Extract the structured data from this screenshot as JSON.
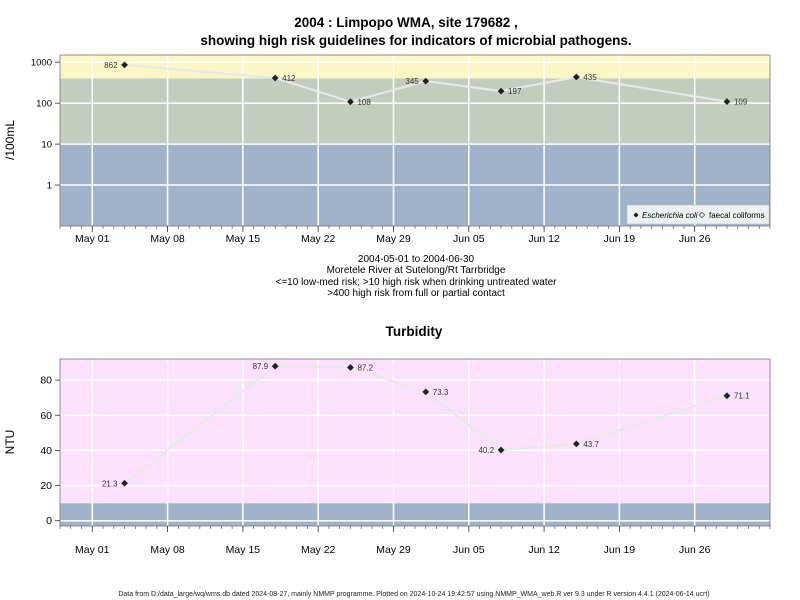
{
  "title_line1": "2004 : Limpopo WMA, site 179682 ,",
  "title_line2": "showing high risk guidelines for indicators of microbial pathogens.",
  "subtitle": {
    "line1": "2004-05-01 to 2004-06-30",
    "line2": "Moretele River at Sutelong/Rt Tarrbridge",
    "line3": "<=10 low-med risk; >10 high risk when drinking untreated water",
    "line4": ">400 high risk from full or partial contact"
  },
  "footer": "Data from D:/data_large/wq/wms.db dated 2024-08-27, mainly NMMP programme. Plotted on 2024-10-24 19:42:57 using NMMP_WMA_web.R ver 9.3 under R version 4.4.1 (2024-06-14 ucrt)",
  "colors": {
    "yellow_band": "#fbf6c6",
    "mid_band": "#c2cdbf",
    "blue_band": "#a1b3cb",
    "pink_band": "#fce0fc",
    "turb_blue_band": "#a1b3cb",
    "line": "#e8e8e8",
    "marker": "#222222"
  },
  "chart_data": [
    {
      "type": "line",
      "title": "",
      "ylabel": "/100mL",
      "yscale": "log",
      "ylim": [
        0.1,
        1500
      ],
      "yticks": [
        1,
        10,
        100,
        1000
      ],
      "ytick_labels": [
        "1",
        "10",
        "100",
        "1000"
      ],
      "xlim": [
        "2004-04-28",
        "2004-07-03"
      ],
      "xticks": [
        "2004-05-01",
        "2004-05-08",
        "2004-05-15",
        "2004-05-22",
        "2004-05-29",
        "2004-06-05",
        "2004-06-12",
        "2004-06-19",
        "2004-06-26"
      ],
      "xtick_labels": [
        "May 01",
        "May 08",
        "May 15",
        "May 22",
        "May 29",
        "Jun 05",
        "Jun 12",
        "Jun 19",
        "Jun 26"
      ],
      "bands": [
        {
          "from": 0.1,
          "to": 10,
          "color": "#a1b3cb"
        },
        {
          "from": 10,
          "to": 400,
          "color": "#c2cdbf"
        },
        {
          "from": 400,
          "to": 1500,
          "color": "#fbf6c6"
        }
      ],
      "series": [
        {
          "name": "Escherichia coli",
          "x": [
            "2004-05-04",
            "2004-05-18",
            "2004-05-25",
            "2004-06-01",
            "2004-06-08",
            "2004-06-15",
            "2004-06-29"
          ],
          "values": [
            862,
            412,
            108,
            345,
            197,
            435,
            109
          ],
          "labels": [
            "862",
            "412",
            "108",
            "345",
            "197",
            "435",
            "109"
          ]
        },
        {
          "name": "faecal coliforms",
          "x": [],
          "values": []
        }
      ],
      "legend": "bottom-right",
      "grid": true
    },
    {
      "type": "line",
      "title": "Turbidity",
      "ylabel": "NTU",
      "yscale": "linear",
      "ylim": [
        -3,
        92
      ],
      "yticks": [
        0,
        20,
        40,
        60,
        80
      ],
      "ytick_labels": [
        "0",
        "20",
        "40",
        "60",
        "80"
      ],
      "xlim": [
        "2004-04-28",
        "2004-07-03"
      ],
      "xticks": [
        "2004-05-01",
        "2004-05-08",
        "2004-05-15",
        "2004-05-22",
        "2004-05-29",
        "2004-06-05",
        "2004-06-12",
        "2004-06-19",
        "2004-06-26"
      ],
      "xtick_labels": [
        "May 01",
        "May 08",
        "May 15",
        "May 22",
        "May 29",
        "Jun 05",
        "Jun 12",
        "Jun 19",
        "Jun 26"
      ],
      "bands": [
        {
          "from": -3,
          "to": 10,
          "color": "#a1b3cb"
        },
        {
          "from": 10,
          "to": 92,
          "color": "#fce0fc"
        }
      ],
      "series": [
        {
          "name": "",
          "x": [
            "2004-05-04",
            "2004-05-18",
            "2004-05-25",
            "2004-06-01",
            "2004-06-08",
            "2004-06-15",
            "2004-06-29"
          ],
          "values": [
            21.3,
            87.9,
            87.2,
            73.3,
            40.2,
            43.7,
            71.1
          ],
          "labels": [
            "21.3",
            "87.9",
            "87.2",
            "73.3",
            "40.2",
            "43.7",
            "71.1"
          ]
        }
      ],
      "grid": true
    }
  ]
}
